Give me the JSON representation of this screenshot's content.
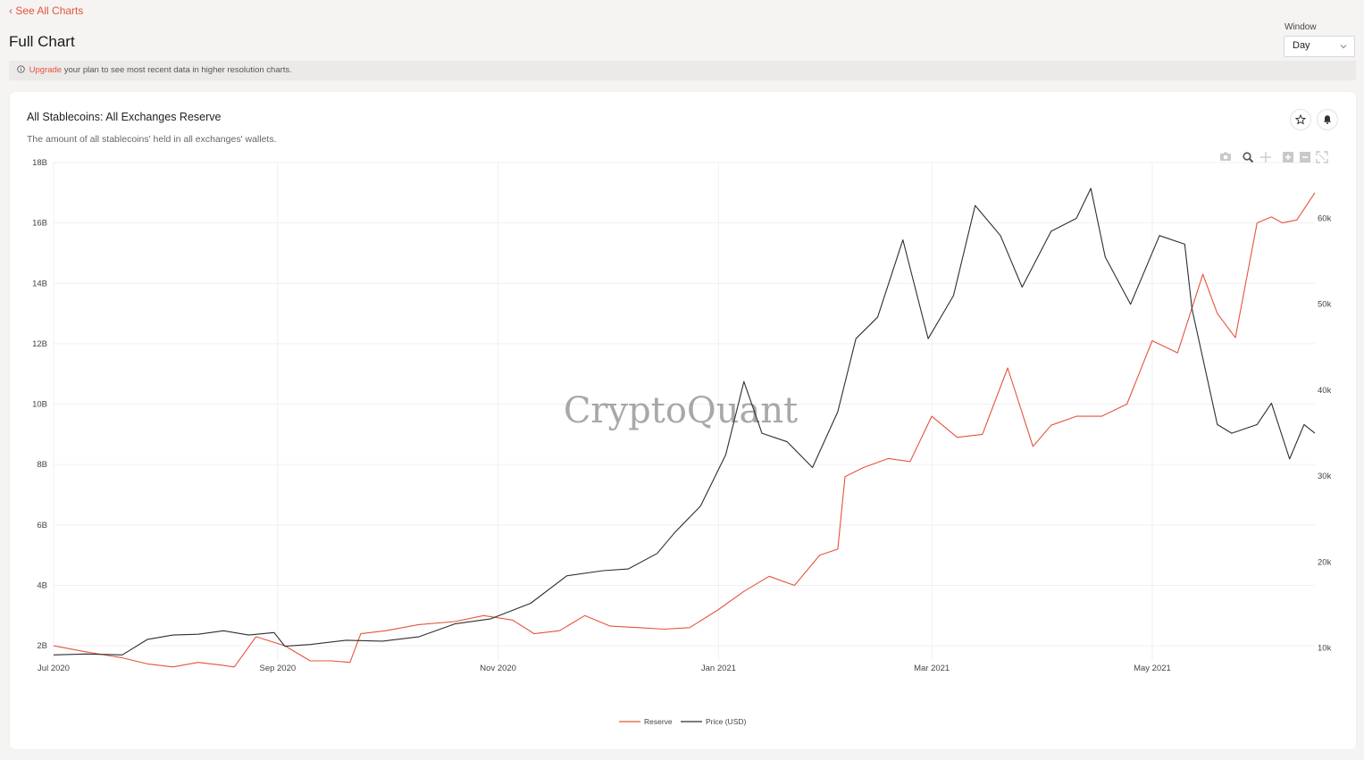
{
  "nav": {
    "back_label": "See All Charts",
    "page_title": "Full Chart"
  },
  "window": {
    "label": "Window",
    "selected": "Day"
  },
  "banner": {
    "upgrade_link": "Upgrade",
    "message": " your plan to see most recent data in higher resolution charts."
  },
  "card": {
    "title": "All Stablecoins: All Exchanges Reserve",
    "description": "The amount of all stablecoins' held in all exchanges' wallets."
  },
  "icons": {
    "favorite": "star-icon",
    "alert": "bell-icon",
    "toolbar": [
      "camera-icon",
      "zoom-icon",
      "pan-icon",
      "zoom-in-icon",
      "zoom-out-icon",
      "autoscale-icon"
    ]
  },
  "colors": {
    "reserve": "#e5533d",
    "price": "#2e2e34",
    "accent": "#e5533d"
  },
  "watermark": "CryptoQuant",
  "chart_data": {
    "type": "line",
    "title": "All Stablecoins: All Exchanges Reserve",
    "x_ticks": [
      "Jul 2020",
      "Sep 2020",
      "Nov 2020",
      "Jan 2021",
      "Mar 2021",
      "May 2021"
    ],
    "y_left": {
      "ticks": [
        "2B",
        "4B",
        "6B",
        "8B",
        "10B",
        "12B",
        "14B",
        "16B",
        "18B"
      ],
      "range": [
        1.5,
        18.0
      ],
      "unit": "B"
    },
    "y_right": {
      "ticks": [
        "10k",
        "20k",
        "30k",
        "40k",
        "50k",
        "60k"
      ],
      "range": [
        8.5,
        66.5
      ],
      "unit": "k"
    },
    "x_range": [
      "2020-07-01",
      "2021-06-15"
    ],
    "legend": [
      "Reserve",
      "Price (USD)"
    ],
    "legend_position": "bottom-center",
    "series": [
      {
        "name": "Reserve",
        "axis": "left",
        "unit": "B",
        "x": [
          "2020-07-01",
          "2020-07-10",
          "2020-07-20",
          "2020-07-27",
          "2020-08-03",
          "2020-08-10",
          "2020-08-17",
          "2020-08-20",
          "2020-08-26",
          "2020-09-03",
          "2020-09-10",
          "2020-09-16",
          "2020-09-21",
          "2020-09-24",
          "2020-10-01",
          "2020-10-10",
          "2020-10-20",
          "2020-10-28",
          "2020-11-05",
          "2020-11-11",
          "2020-11-18",
          "2020-11-25",
          "2020-12-02",
          "2020-12-10",
          "2020-12-17",
          "2020-12-24",
          "2021-01-01",
          "2021-01-08",
          "2021-01-15",
          "2021-01-22",
          "2021-01-29",
          "2021-02-03",
          "2021-02-05",
          "2021-02-10",
          "2021-02-17",
          "2021-02-23",
          "2021-03-01",
          "2021-03-08",
          "2021-03-15",
          "2021-03-22",
          "2021-03-29",
          "2021-04-03",
          "2021-04-10",
          "2021-04-17",
          "2021-04-24",
          "2021-05-01",
          "2021-05-08",
          "2021-05-15",
          "2021-05-19",
          "2021-05-24",
          "2021-05-30",
          "2021-06-03",
          "2021-06-06",
          "2021-06-10",
          "2021-06-15"
        ],
        "values": [
          2.0,
          1.8,
          1.6,
          1.4,
          1.3,
          1.45,
          1.35,
          1.3,
          2.3,
          2.0,
          1.5,
          1.5,
          1.45,
          2.4,
          2.5,
          2.7,
          2.8,
          3.0,
          2.85,
          2.4,
          2.5,
          3.0,
          2.65,
          2.6,
          2.55,
          2.6,
          3.2,
          3.8,
          4.3,
          4.0,
          5.0,
          5.2,
          7.6,
          7.9,
          8.2,
          8.1,
          9.6,
          8.9,
          9.0,
          11.2,
          8.6,
          9.3,
          9.6,
          9.6,
          10.0,
          12.1,
          11.7,
          14.3,
          13.0,
          12.2,
          16.0,
          16.2,
          16.0,
          16.1,
          17.0
        ]
      },
      {
        "name": "Price (USD)",
        "axis": "right",
        "unit": "k",
        "x": [
          "2020-07-01",
          "2020-07-10",
          "2020-07-20",
          "2020-07-27",
          "2020-08-03",
          "2020-08-10",
          "2020-08-17",
          "2020-08-24",
          "2020-08-31",
          "2020-09-03",
          "2020-09-10",
          "2020-09-20",
          "2020-09-30",
          "2020-10-10",
          "2020-10-20",
          "2020-10-30",
          "2020-11-10",
          "2020-11-20",
          "2020-11-30",
          "2020-12-07",
          "2020-12-15",
          "2020-12-20",
          "2020-12-27",
          "2021-01-03",
          "2021-01-08",
          "2021-01-13",
          "2021-01-20",
          "2021-01-27",
          "2021-02-03",
          "2021-02-08",
          "2021-02-14",
          "2021-02-21",
          "2021-02-28",
          "2021-03-07",
          "2021-03-13",
          "2021-03-20",
          "2021-03-26",
          "2021-04-03",
          "2021-04-10",
          "2021-04-14",
          "2021-04-18",
          "2021-04-25",
          "2021-05-03",
          "2021-05-10",
          "2021-05-12",
          "2021-05-19",
          "2021-05-23",
          "2021-05-30",
          "2021-06-03",
          "2021-06-08",
          "2021-06-12",
          "2021-06-15"
        ],
        "values": [
          9.2,
          9.3,
          9.2,
          11.0,
          11.5,
          11.6,
          12.0,
          11.5,
          11.8,
          10.2,
          10.4,
          10.9,
          10.8,
          11.3,
          12.8,
          13.4,
          15.2,
          18.4,
          19.0,
          19.2,
          21.0,
          23.5,
          26.5,
          32.5,
          41.0,
          35.0,
          34.0,
          31.0,
          37.5,
          46.0,
          48.5,
          57.5,
          46.0,
          51.0,
          61.5,
          58.0,
          52.0,
          58.5,
          60.0,
          63.5,
          55.5,
          50.0,
          58.0,
          57.0,
          49.5,
          36.0,
          35.0,
          36.0,
          38.5,
          32.0,
          36.0,
          35.0
        ]
      }
    ]
  }
}
